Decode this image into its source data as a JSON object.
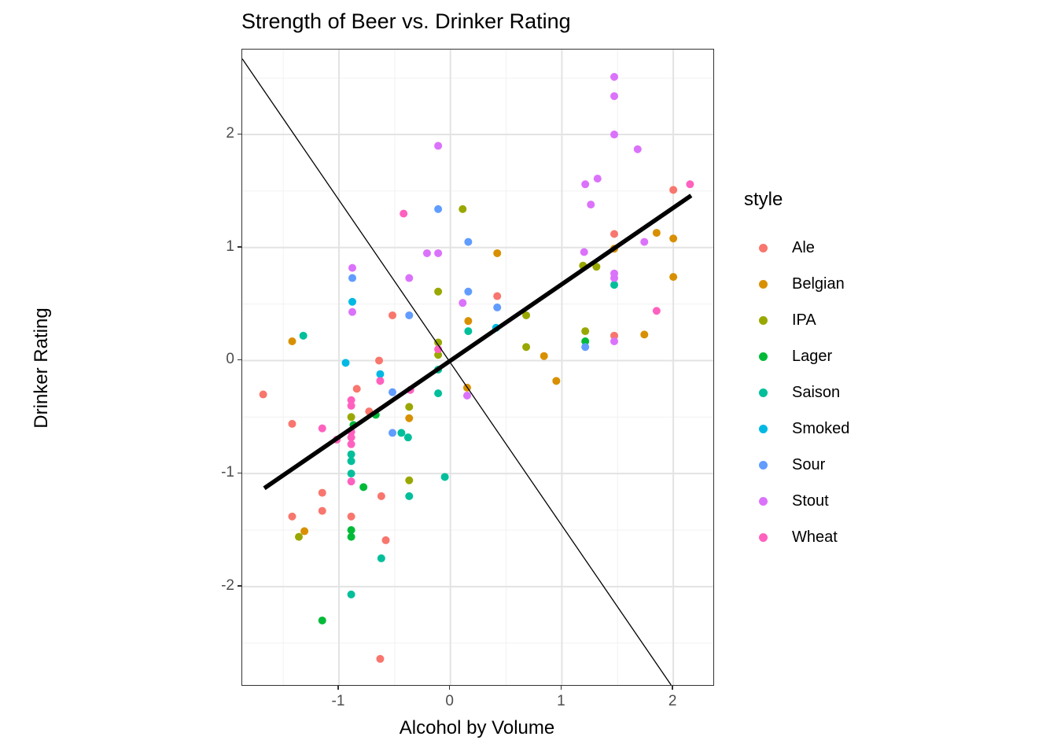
{
  "chart_data": {
    "type": "scatter",
    "title": "Strength of Beer vs. Drinker Rating",
    "xlabel": "Alcohol by Volume",
    "ylabel": "Drinker Rating",
    "legend_title": "style",
    "legend_position": "right",
    "grid": true,
    "xlim": [
      -1.868,
      2.359
    ],
    "ylim": [
      -2.871,
      2.752
    ],
    "x_ticks": [
      -1,
      0,
      1,
      2
    ],
    "y_ticks": [
      -2,
      -1,
      0,
      1,
      2
    ],
    "x_minor_ticks": [
      -1.5,
      -0.5,
      0.5,
      1.5
    ],
    "y_minor_ticks": [
      -2.5,
      -1.5,
      -0.5,
      0.5,
      1.5,
      2.5
    ],
    "colors": {
      "major_grid": "#e3e3e3",
      "minor_grid": "#f1f1f1",
      "panel_border": "#333333",
      "axis_text": "#4d4d4d",
      "line": "#000000"
    },
    "lines": [
      {
        "name": "regression-line",
        "x1": -1.67,
        "y1": -1.13,
        "x2": 2.16,
        "y2": 1.46,
        "width": 5.5
      },
      {
        "name": "secondary-line",
        "x1": -1.868,
        "y1": 2.67,
        "x2": 1.98,
        "y2": -2.871,
        "width": 1.3
      }
    ],
    "series": [
      {
        "name": "Ale",
        "color": "#F8766D",
        "points": [
          [
            -1.68,
            -0.3
          ],
          [
            -1.42,
            -0.56
          ],
          [
            -1.42,
            -1.38
          ],
          [
            -1.15,
            -1.17
          ],
          [
            -1.15,
            -1.33
          ],
          [
            -0.89,
            -1.38
          ],
          [
            -0.84,
            -0.25
          ],
          [
            -0.73,
            -0.45
          ],
          [
            -0.64,
            0.0
          ],
          [
            -0.63,
            -2.64
          ],
          [
            -0.62,
            -1.2
          ],
          [
            -0.58,
            -1.59
          ],
          [
            -0.52,
            0.4
          ],
          [
            0.42,
            0.57
          ],
          [
            1.47,
            1.12
          ],
          [
            1.47,
            0.22
          ],
          [
            2.0,
            1.51
          ]
        ]
      },
      {
        "name": "Belgian",
        "color": "#D89000",
        "points": [
          [
            -1.42,
            0.17
          ],
          [
            -1.31,
            -1.51
          ],
          [
            -0.37,
            -0.51
          ],
          [
            0.15,
            -0.24
          ],
          [
            0.16,
            0.35
          ],
          [
            0.42,
            0.95
          ],
          [
            0.84,
            0.04
          ],
          [
            0.95,
            -0.18
          ],
          [
            1.47,
            0.99
          ],
          [
            1.74,
            0.23
          ],
          [
            1.85,
            1.13
          ],
          [
            2.0,
            1.08
          ],
          [
            2.0,
            0.74
          ]
        ]
      },
      {
        "name": "IPA",
        "color": "#99A800",
        "points": [
          [
            -1.36,
            -1.56
          ],
          [
            -0.89,
            -0.5
          ],
          [
            -0.37,
            -0.41
          ],
          [
            -0.37,
            -1.06
          ],
          [
            -0.11,
            0.61
          ],
          [
            -0.11,
            0.16
          ],
          [
            -0.11,
            0.05
          ],
          [
            0.11,
            1.34
          ],
          [
            0.68,
            0.4
          ],
          [
            0.68,
            0.12
          ],
          [
            1.19,
            0.84
          ],
          [
            1.31,
            0.83
          ],
          [
            1.21,
            0.26
          ]
        ]
      },
      {
        "name": "Lager",
        "color": "#00BA38",
        "points": [
          [
            -1.15,
            -2.3
          ],
          [
            -0.89,
            -1.5
          ],
          [
            -0.89,
            -1.56
          ],
          [
            -0.87,
            -0.57
          ],
          [
            -0.78,
            -1.12
          ],
          [
            -0.67,
            -0.48
          ],
          [
            1.21,
            0.17
          ]
        ]
      },
      {
        "name": "Saison",
        "color": "#00BF9A",
        "points": [
          [
            -1.32,
            0.22
          ],
          [
            -0.89,
            -0.83
          ],
          [
            -0.89,
            -0.89
          ],
          [
            -0.89,
            -1.0
          ],
          [
            -0.89,
            -2.07
          ],
          [
            -0.62,
            -1.75
          ],
          [
            -0.44,
            -0.64
          ],
          [
            -0.38,
            -0.68
          ],
          [
            -0.37,
            -1.2
          ],
          [
            -0.11,
            -0.08
          ],
          [
            -0.11,
            -0.29
          ],
          [
            -0.05,
            -1.03
          ],
          [
            0.16,
            0.26
          ],
          [
            1.47,
            0.67
          ]
        ]
      },
      {
        "name": "Smoked",
        "color": "#00B9E3",
        "points": [
          [
            -0.94,
            -0.02
          ],
          [
            -0.88,
            0.52
          ],
          [
            -0.63,
            -0.12
          ],
          [
            0.41,
            0.29
          ]
        ]
      },
      {
        "name": "Sour",
        "color": "#619CFF",
        "points": [
          [
            -0.88,
            0.73
          ],
          [
            -0.52,
            -0.28
          ],
          [
            -0.52,
            -0.64
          ],
          [
            -0.37,
            0.4
          ],
          [
            -0.11,
            1.34
          ],
          [
            0.16,
            1.05
          ],
          [
            0.16,
            0.61
          ],
          [
            0.42,
            0.47
          ],
          [
            1.21,
            0.12
          ]
        ]
      },
      {
        "name": "Stout",
        "color": "#DB72FB",
        "points": [
          [
            -0.88,
            0.82
          ],
          [
            -0.88,
            0.43
          ],
          [
            -0.37,
            0.73
          ],
          [
            -0.21,
            0.95
          ],
          [
            -0.11,
            1.9
          ],
          [
            -0.11,
            0.95
          ],
          [
            0.11,
            0.51
          ],
          [
            0.15,
            -0.31
          ],
          [
            1.2,
            0.96
          ],
          [
            1.21,
            1.56
          ],
          [
            1.26,
            1.38
          ],
          [
            1.32,
            1.61
          ],
          [
            1.47,
            2.51
          ],
          [
            1.47,
            2.34
          ],
          [
            1.47,
            2.0
          ],
          [
            1.47,
            0.77
          ],
          [
            1.47,
            0.73
          ],
          [
            1.47,
            0.17
          ],
          [
            1.68,
            1.87
          ],
          [
            1.74,
            1.05
          ]
        ]
      },
      {
        "name": "Wheat",
        "color": "#FF61BF",
        "points": [
          [
            -1.15,
            -0.6
          ],
          [
            -1.02,
            -0.7
          ],
          [
            -0.89,
            -0.35
          ],
          [
            -0.89,
            -0.4
          ],
          [
            -0.89,
            -0.63
          ],
          [
            -0.89,
            -0.68
          ],
          [
            -0.89,
            -0.74
          ],
          [
            -0.89,
            -1.07
          ],
          [
            -0.63,
            -0.18
          ],
          [
            -0.42,
            1.3
          ],
          [
            -0.36,
            -0.26
          ],
          [
            -0.11,
            0.1
          ],
          [
            1.85,
            0.44
          ],
          [
            2.15,
            1.56
          ]
        ]
      }
    ]
  }
}
